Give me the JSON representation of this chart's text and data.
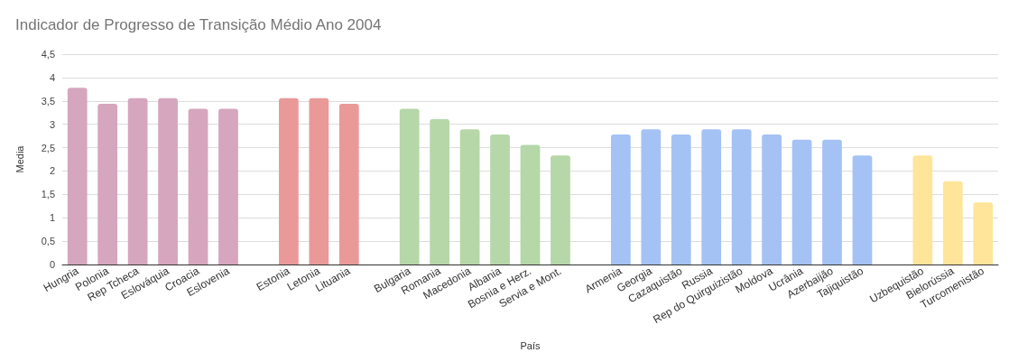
{
  "chart_data": {
    "type": "bar",
    "title": "Indicador de Progresso de Transição Médio Ano 2004",
    "xlabel": "País",
    "ylabel": "Media",
    "categories": [
      "Hungria",
      "Polonia",
      "Rep Tcheca",
      "Eslováquia",
      "Croacia",
      "Eslovenia",
      null,
      "Estonia",
      "Letonia",
      "Lituania",
      null,
      "Bulgaria",
      "Romania",
      "Macedonia",
      "Albania",
      "Bosnia e Herz.",
      "Servia e Mont.",
      null,
      "Armenia",
      "Georgia",
      "Cazaquistão",
      "Russia",
      "Rep do Quirguizistão",
      "Moldova",
      "Ucrânia",
      "Azerbaijão",
      "Tajiquistão",
      null,
      "Uzbequistão",
      "Bielorússia",
      "Turcomenistão"
    ],
    "values": [
      3.78,
      3.44,
      3.56,
      3.56,
      3.33,
      3.33,
      null,
      3.56,
      3.56,
      3.44,
      null,
      3.33,
      3.11,
      2.89,
      2.78,
      2.56,
      2.33,
      null,
      2.78,
      2.89,
      2.78,
      2.89,
      2.89,
      2.78,
      2.67,
      2.67,
      2.33,
      null,
      2.33,
      1.78,
      1.33
    ],
    "colors": [
      "#d5a6bd",
      "#d5a6bd",
      "#d5a6bd",
      "#d5a6bd",
      "#d5a6bd",
      "#d5a6bd",
      null,
      "#ea9999",
      "#ea9999",
      "#ea9999",
      null,
      "#b6d7a8",
      "#b6d7a8",
      "#b6d7a8",
      "#b6d7a8",
      "#b6d7a8",
      "#b6d7a8",
      null,
      "#a4c2f4",
      "#a4c2f4",
      "#a4c2f4",
      "#a4c2f4",
      "#a4c2f4",
      "#a4c2f4",
      "#a4c2f4",
      "#a4c2f4",
      "#a4c2f4",
      null,
      "#ffe599",
      "#ffe599",
      "#ffe599"
    ],
    "ylim": [
      0,
      4.5
    ],
    "yticks": [
      0,
      {
        "value": 0.5,
        "label": "0,5"
      },
      1,
      {
        "value": 1.5,
        "label": "1,5"
      },
      2,
      {
        "value": 2.5,
        "label": "2,5"
      },
      3,
      {
        "value": 3.5,
        "label": "3,5"
      },
      4,
      {
        "value": 4.5,
        "label": "4,5"
      }
    ],
    "grid": "y"
  }
}
